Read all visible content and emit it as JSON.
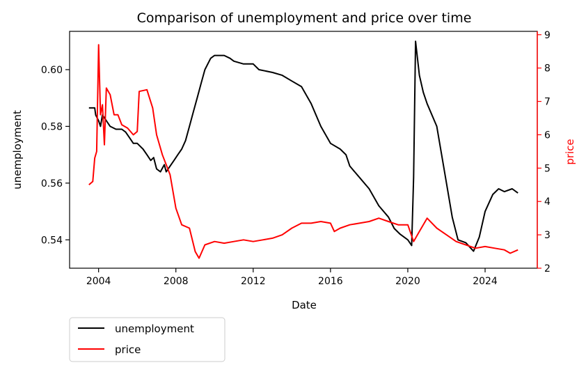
{
  "chart_data": {
    "type": "line",
    "title": "Comparison of unemployment and price over time",
    "xlabel": "Date",
    "ylabel_left": "unemployment",
    "ylabel_right": "price",
    "xlim": [
      2002.5,
      2026.7
    ],
    "ylim_left": [
      0.53,
      0.6135
    ],
    "ylim_right": [
      2.0,
      9.1
    ],
    "x_ticks": [
      2004,
      2008,
      2012,
      2016,
      2020,
      2024
    ],
    "y_ticks_left": [
      0.54,
      0.56,
      0.58,
      0.6
    ],
    "y_ticks_right": [
      2,
      3,
      4,
      5,
      6,
      7,
      8,
      9
    ],
    "grid": false,
    "legend": "below-left",
    "series": [
      {
        "name": "unemployment",
        "axis": "left",
        "color": "#000000",
        "points": [
          [
            2003.5,
            0.5865
          ],
          [
            2003.8,
            0.5865
          ],
          [
            2003.85,
            0.584
          ],
          [
            2004.0,
            0.582
          ],
          [
            2004.1,
            0.58
          ],
          [
            2004.2,
            0.584
          ],
          [
            2004.4,
            0.582
          ],
          [
            2004.6,
            0.58
          ],
          [
            2004.9,
            0.579
          ],
          [
            2005.2,
            0.579
          ],
          [
            2005.4,
            0.578
          ],
          [
            2005.6,
            0.576
          ],
          [
            2005.8,
            0.574
          ],
          [
            2006.0,
            0.574
          ],
          [
            2006.3,
            0.572
          ],
          [
            2006.5,
            0.57
          ],
          [
            2006.7,
            0.568
          ],
          [
            2006.85,
            0.569
          ],
          [
            2007.0,
            0.565
          ],
          [
            2007.2,
            0.564
          ],
          [
            2007.4,
            0.5665
          ],
          [
            2007.5,
            0.564
          ],
          [
            2007.7,
            0.566
          ],
          [
            2007.9,
            0.568
          ],
          [
            2008.1,
            0.57
          ],
          [
            2008.3,
            0.572
          ],
          [
            2008.5,
            0.575
          ],
          [
            2008.7,
            0.58
          ],
          [
            2008.9,
            0.585
          ],
          [
            2009.1,
            0.59
          ],
          [
            2009.3,
            0.595
          ],
          [
            2009.5,
            0.6
          ],
          [
            2009.8,
            0.604
          ],
          [
            2010.0,
            0.605
          ],
          [
            2010.5,
            0.605
          ],
          [
            2010.8,
            0.604
          ],
          [
            2011.0,
            0.603
          ],
          [
            2011.5,
            0.602
          ],
          [
            2012.0,
            0.602
          ],
          [
            2012.3,
            0.6
          ],
          [
            2013.0,
            0.599
          ],
          [
            2013.5,
            0.598
          ],
          [
            2014.0,
            0.596
          ],
          [
            2014.5,
            0.594
          ],
          [
            2015.0,
            0.588
          ],
          [
            2015.5,
            0.58
          ],
          [
            2016.0,
            0.574
          ],
          [
            2016.5,
            0.572
          ],
          [
            2016.8,
            0.57
          ],
          [
            2017.0,
            0.566
          ],
          [
            2017.5,
            0.562
          ],
          [
            2018.0,
            0.558
          ],
          [
            2018.5,
            0.552
          ],
          [
            2019.0,
            0.548
          ],
          [
            2019.3,
            0.544
          ],
          [
            2019.6,
            0.542
          ],
          [
            2020.0,
            0.54
          ],
          [
            2020.2,
            0.538
          ],
          [
            2020.3,
            0.562
          ],
          [
            2020.4,
            0.61
          ],
          [
            2020.6,
            0.598
          ],
          [
            2020.8,
            0.592
          ],
          [
            2021.0,
            0.588
          ],
          [
            2021.5,
            0.58
          ],
          [
            2022.0,
            0.56
          ],
          [
            2022.3,
            0.548
          ],
          [
            2022.6,
            0.54
          ],
          [
            2023.0,
            0.539
          ],
          [
            2023.4,
            0.536
          ],
          [
            2023.7,
            0.541
          ],
          [
            2024.0,
            0.55
          ],
          [
            2024.4,
            0.556
          ],
          [
            2024.7,
            0.558
          ],
          [
            2025.0,
            0.557
          ],
          [
            2025.4,
            0.558
          ],
          [
            2025.7,
            0.5565
          ]
        ]
      },
      {
        "name": "price",
        "axis": "right",
        "color": "#ff0000",
        "points": [
          [
            2003.5,
            4.5
          ],
          [
            2003.7,
            4.6
          ],
          [
            2003.8,
            5.3
          ],
          [
            2003.9,
            5.5
          ],
          [
            2004.0,
            8.7
          ],
          [
            2004.1,
            6.6
          ],
          [
            2004.2,
            6.9
          ],
          [
            2004.3,
            5.7
          ],
          [
            2004.4,
            7.4
          ],
          [
            2004.6,
            7.2
          ],
          [
            2004.8,
            6.6
          ],
          [
            2005.0,
            6.6
          ],
          [
            2005.2,
            6.3
          ],
          [
            2005.5,
            6.2
          ],
          [
            2005.8,
            6.0
          ],
          [
            2006.0,
            6.1
          ],
          [
            2006.1,
            7.3
          ],
          [
            2006.5,
            7.35
          ],
          [
            2006.8,
            6.8
          ],
          [
            2007.0,
            6.0
          ],
          [
            2007.3,
            5.4
          ],
          [
            2007.7,
            4.8
          ],
          [
            2008.0,
            3.8
          ],
          [
            2008.3,
            3.3
          ],
          [
            2008.7,
            3.2
          ],
          [
            2009.0,
            2.5
          ],
          [
            2009.2,
            2.3
          ],
          [
            2009.5,
            2.7
          ],
          [
            2010.0,
            2.8
          ],
          [
            2010.5,
            2.75
          ],
          [
            2011.0,
            2.8
          ],
          [
            2011.5,
            2.85
          ],
          [
            2012.0,
            2.8
          ],
          [
            2012.5,
            2.85
          ],
          [
            2013.0,
            2.9
          ],
          [
            2013.5,
            3.0
          ],
          [
            2014.0,
            3.2
          ],
          [
            2014.5,
            3.35
          ],
          [
            2015.0,
            3.35
          ],
          [
            2015.5,
            3.4
          ],
          [
            2016.0,
            3.35
          ],
          [
            2016.2,
            3.1
          ],
          [
            2016.5,
            3.2
          ],
          [
            2017.0,
            3.3
          ],
          [
            2017.5,
            3.35
          ],
          [
            2018.0,
            3.4
          ],
          [
            2018.5,
            3.5
          ],
          [
            2019.0,
            3.4
          ],
          [
            2019.5,
            3.3
          ],
          [
            2020.0,
            3.3
          ],
          [
            2020.3,
            2.8
          ],
          [
            2020.6,
            3.1
          ],
          [
            2021.0,
            3.5
          ],
          [
            2021.5,
            3.2
          ],
          [
            2022.0,
            3.0
          ],
          [
            2022.5,
            2.8
          ],
          [
            2023.0,
            2.7
          ],
          [
            2023.5,
            2.6
          ],
          [
            2024.0,
            2.65
          ],
          [
            2024.5,
            2.6
          ],
          [
            2025.0,
            2.55
          ],
          [
            2025.3,
            2.45
          ],
          [
            2025.7,
            2.55
          ]
        ]
      }
    ]
  }
}
